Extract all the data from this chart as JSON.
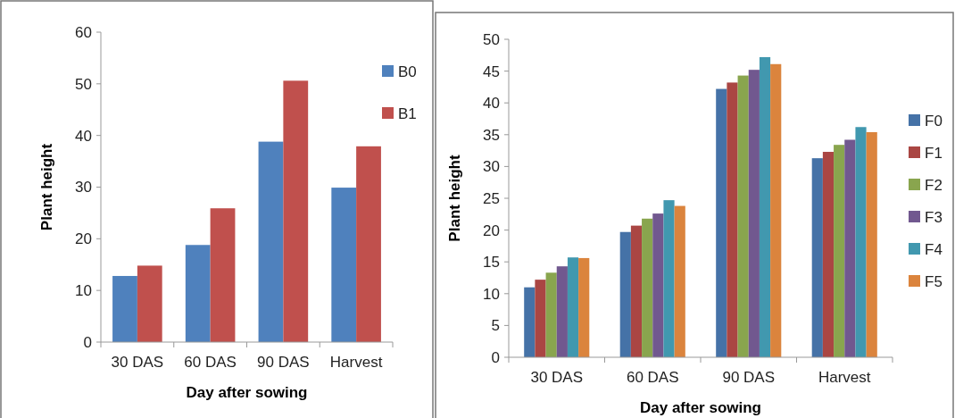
{
  "chart_data": [
    {
      "type": "bar",
      "xlabel": "Day after sowing",
      "ylabel": "Plant height",
      "categories": [
        "30 DAS",
        "60 DAS",
        "90 DAS",
        "Harvest"
      ],
      "series": [
        {
          "name": "B0",
          "color": "#4f81bd",
          "values": [
            12.8,
            18.8,
            38.8,
            29.9
          ]
        },
        {
          "name": "B1",
          "color": "#c0504d",
          "values": [
            14.8,
            25.9,
            50.6,
            37.9
          ]
        }
      ],
      "ylim": [
        0,
        60
      ],
      "yticks": [
        0,
        10,
        20,
        30,
        40,
        50,
        60
      ],
      "legend": "right",
      "grid": false
    },
    {
      "type": "bar",
      "xlabel": "Day after sowing",
      "ylabel": "Plant height",
      "categories": [
        "30 DAS",
        "60 DAS",
        "90 DAS",
        "Harvest"
      ],
      "series": [
        {
          "name": "F0",
          "color": "#4572a7",
          "values": [
            11.0,
            19.7,
            42.2,
            31.3
          ]
        },
        {
          "name": "F1",
          "color": "#aa4643",
          "values": [
            12.2,
            20.7,
            43.2,
            32.3
          ]
        },
        {
          "name": "F2",
          "color": "#89a54e",
          "values": [
            13.3,
            21.8,
            44.3,
            33.4
          ]
        },
        {
          "name": "F3",
          "color": "#71588f",
          "values": [
            14.3,
            22.6,
            45.2,
            34.2
          ]
        },
        {
          "name": "F4",
          "color": "#4198af",
          "values": [
            15.7,
            24.7,
            47.2,
            36.2
          ]
        },
        {
          "name": "F5",
          "color": "#db843d",
          "values": [
            15.6,
            23.8,
            46.1,
            35.4
          ]
        }
      ],
      "ylim": [
        0,
        50
      ],
      "yticks": [
        0,
        5,
        10,
        15,
        20,
        25,
        30,
        35,
        40,
        45,
        50
      ],
      "legend": "right",
      "grid": false
    }
  ]
}
